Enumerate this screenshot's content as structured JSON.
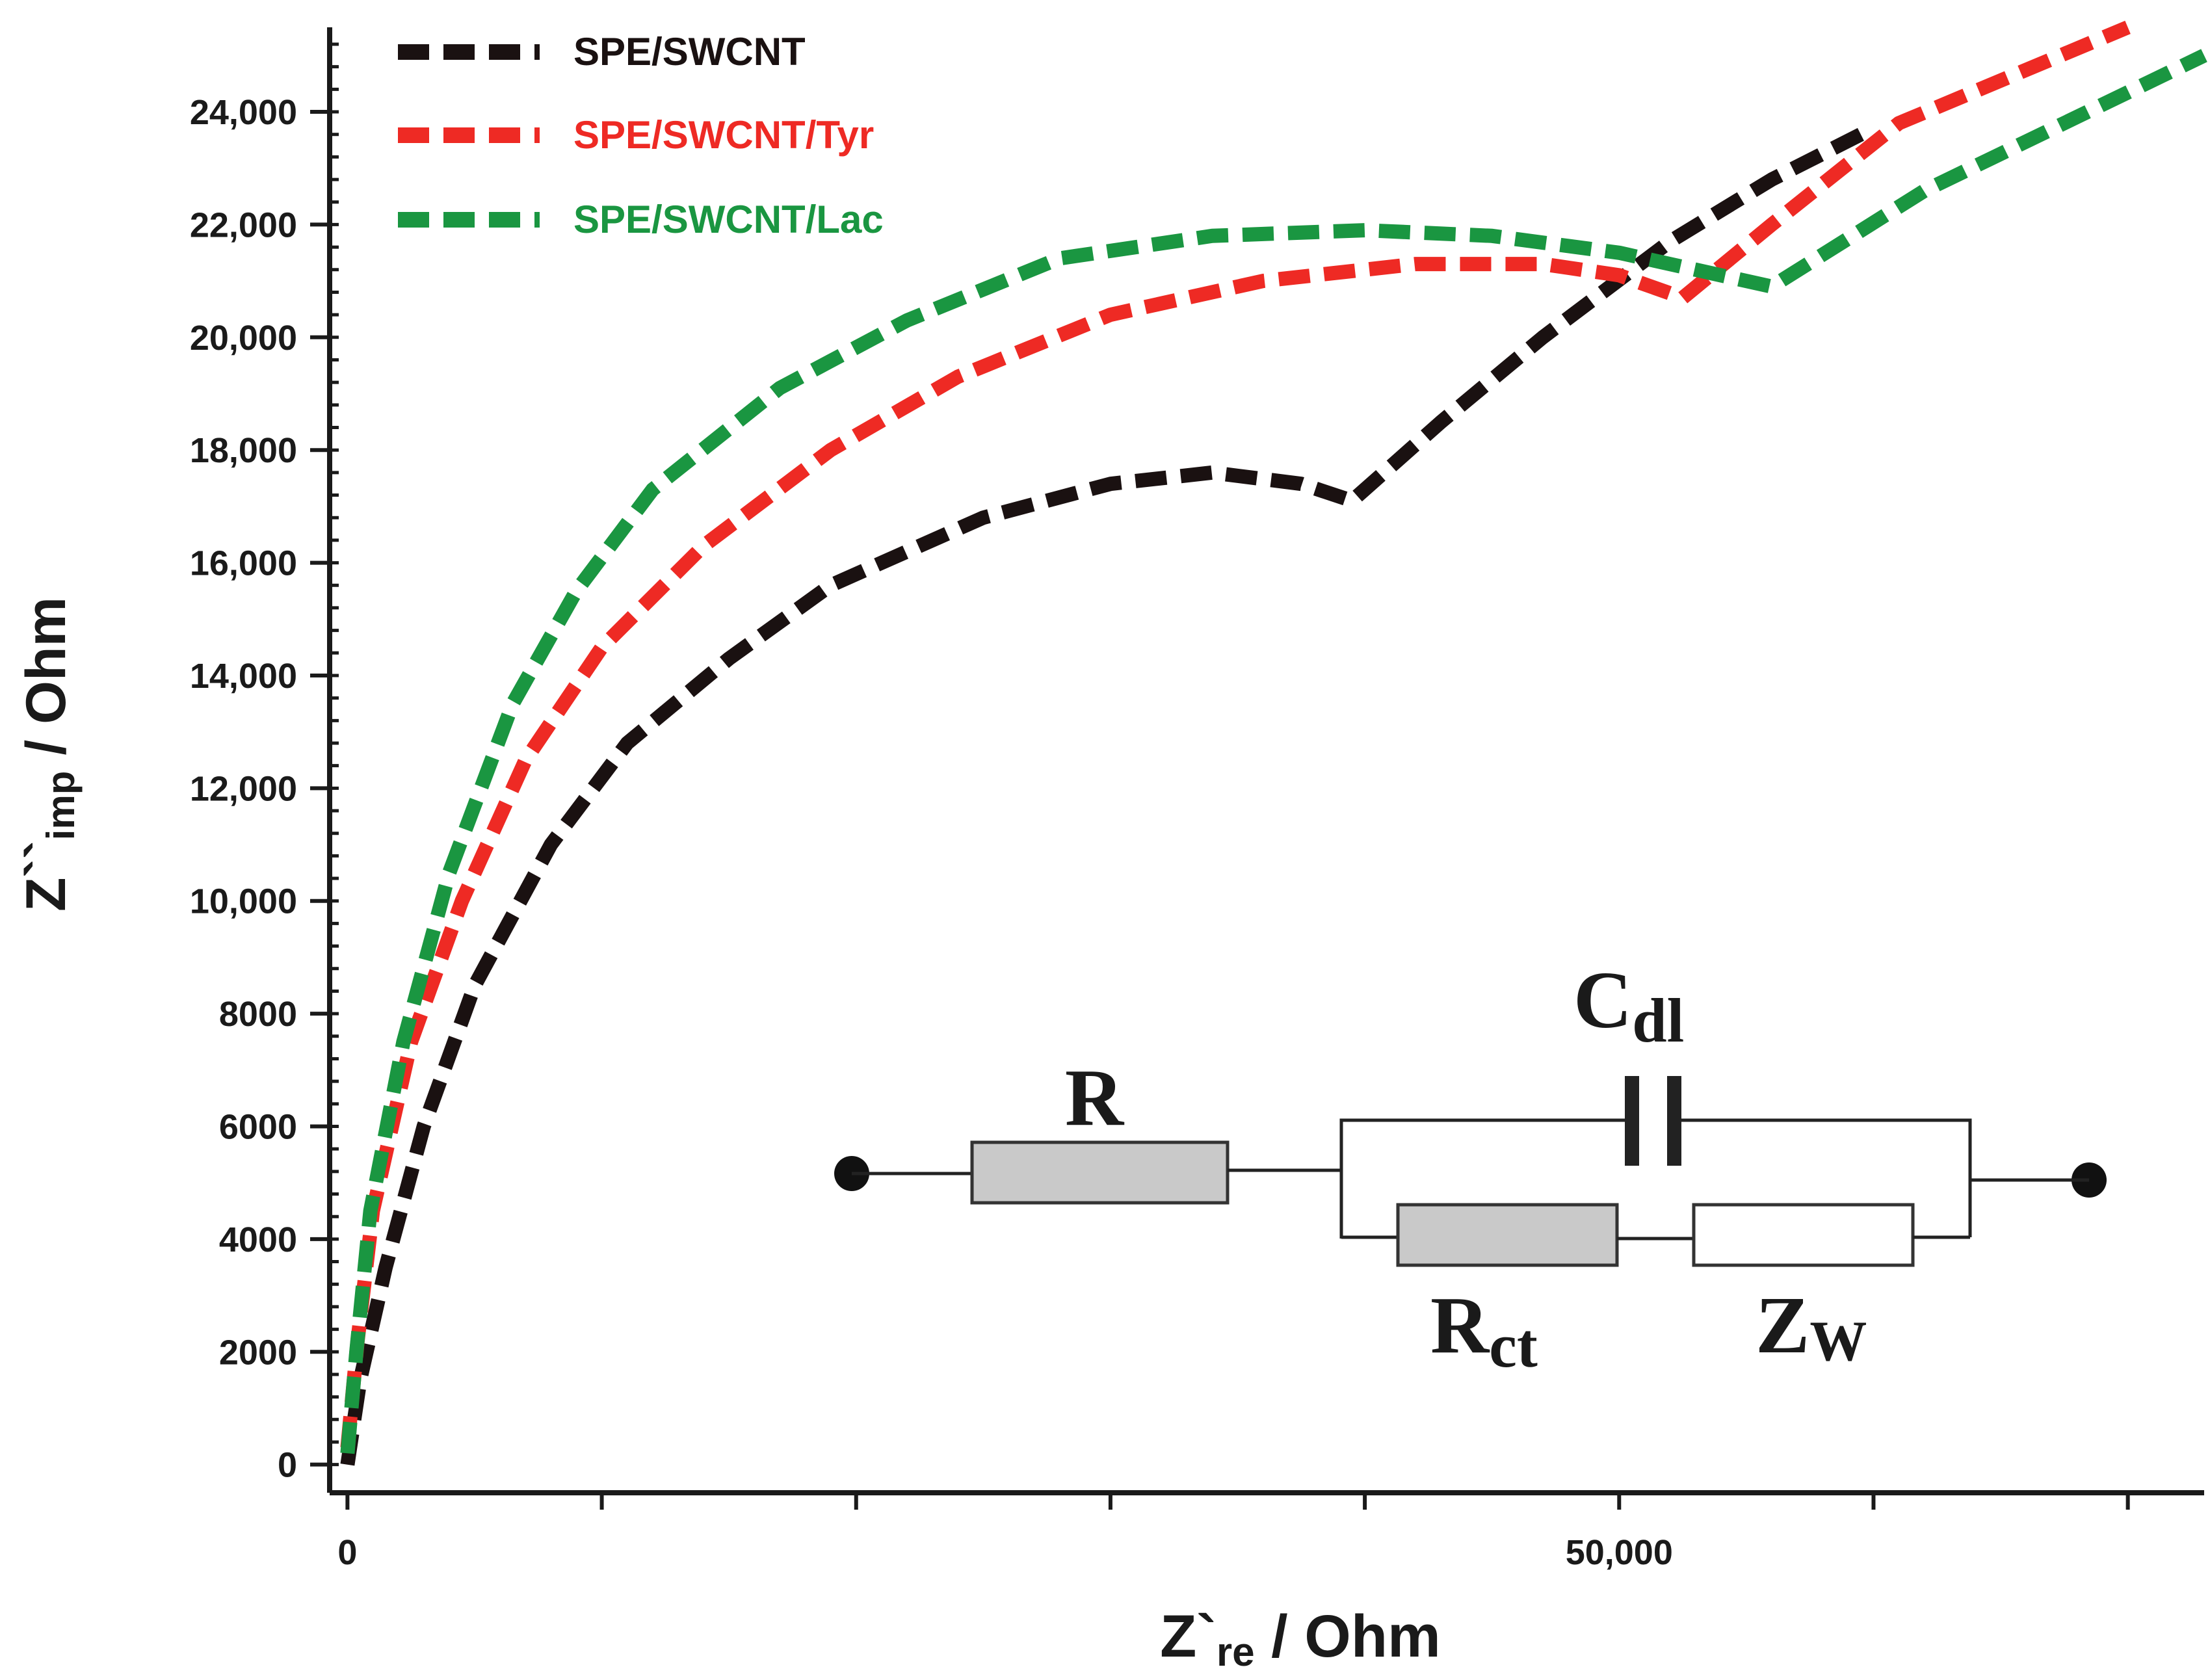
{
  "chart_data": {
    "type": "line",
    "title": "",
    "xlabel": {
      "main": "Z`",
      "sub": "re",
      "rest": " / Ohm"
    },
    "ylabel": {
      "main": "Z``",
      "sub": "imp",
      "rest": " / Ohm"
    },
    "xlim": [
      -700,
      73000
    ],
    "ylim": [
      -500,
      25500
    ],
    "x_ticks": [
      {
        "value": 0,
        "label": "0"
      },
      {
        "value": 50000,
        "label": "50,000"
      }
    ],
    "y_ticks": [
      {
        "value": 0,
        "label": "0"
      },
      {
        "value": 2000,
        "label": "2000"
      },
      {
        "value": 4000,
        "label": "4000"
      },
      {
        "value": 6000,
        "label": "6000"
      },
      {
        "value": 8000,
        "label": "8000"
      },
      {
        "value": 10000,
        "label": "10,000"
      },
      {
        "value": 12000,
        "label": "12,000"
      },
      {
        "value": 14000,
        "label": "14,000"
      },
      {
        "value": 16000,
        "label": "16,000"
      },
      {
        "value": 18000,
        "label": "18,000"
      },
      {
        "value": 20000,
        "label": "20,000"
      },
      {
        "value": 22000,
        "label": "22,000"
      },
      {
        "value": 24000,
        "label": "24,000"
      }
    ],
    "legend_position": "top-left",
    "series": [
      {
        "name": "SPE/SWCNT",
        "color": "#1a1111",
        "points": [
          [
            0,
            0
          ],
          [
            500,
            1500
          ],
          [
            1500,
            3500
          ],
          [
            3000,
            6000
          ],
          [
            5000,
            8500
          ],
          [
            8000,
            11000
          ],
          [
            11000,
            12800
          ],
          [
            15000,
            14300
          ],
          [
            19000,
            15600
          ],
          [
            25000,
            16800
          ],
          [
            30000,
            17400
          ],
          [
            34000,
            17600
          ],
          [
            37500,
            17400
          ],
          [
            39500,
            17100
          ],
          [
            43000,
            18500
          ],
          [
            47000,
            20000
          ],
          [
            52000,
            21700
          ],
          [
            56000,
            22800
          ],
          [
            59500,
            23600
          ]
        ]
      },
      {
        "name": "SPE/SWCNT/Tyr",
        "color": "#ee2a24",
        "points": [
          [
            0,
            300
          ],
          [
            400,
            2200
          ],
          [
            1000,
            4500
          ],
          [
            2500,
            7500
          ],
          [
            4500,
            10000
          ],
          [
            7000,
            12500
          ],
          [
            10000,
            14500
          ],
          [
            14000,
            16300
          ],
          [
            19000,
            18000
          ],
          [
            24000,
            19300
          ],
          [
            30000,
            20400
          ],
          [
            36000,
            21000
          ],
          [
            42000,
            21300
          ],
          [
            47000,
            21300
          ],
          [
            50000,
            21100
          ],
          [
            52500,
            20700
          ],
          [
            56000,
            22000
          ],
          [
            61000,
            23800
          ],
          [
            70000,
            25500
          ]
        ]
      },
      {
        "name": "SPE/SWCNT/Lac",
        "color": "#1a9641",
        "points": [
          [
            0,
            200
          ],
          [
            350,
            2000
          ],
          [
            900,
            4500
          ],
          [
            2200,
            7500
          ],
          [
            4000,
            10500
          ],
          [
            6500,
            13500
          ],
          [
            9000,
            15500
          ],
          [
            12000,
            17300
          ],
          [
            17000,
            19100
          ],
          [
            22000,
            20300
          ],
          [
            28000,
            21400
          ],
          [
            34000,
            21800
          ],
          [
            40000,
            21900
          ],
          [
            45000,
            21800
          ],
          [
            50000,
            21500
          ],
          [
            53000,
            21200
          ],
          [
            56000,
            20900
          ],
          [
            62000,
            22600
          ],
          [
            73000,
            25000
          ]
        ]
      }
    ]
  },
  "circuit": {
    "label_R": "R",
    "label_Cdl_main": "C",
    "label_Cdl_sub": "dl",
    "label_Rct_main": "R",
    "label_Rct_sub": "ct",
    "label_Zw_main": "Z",
    "label_Zw_sub": "W"
  }
}
